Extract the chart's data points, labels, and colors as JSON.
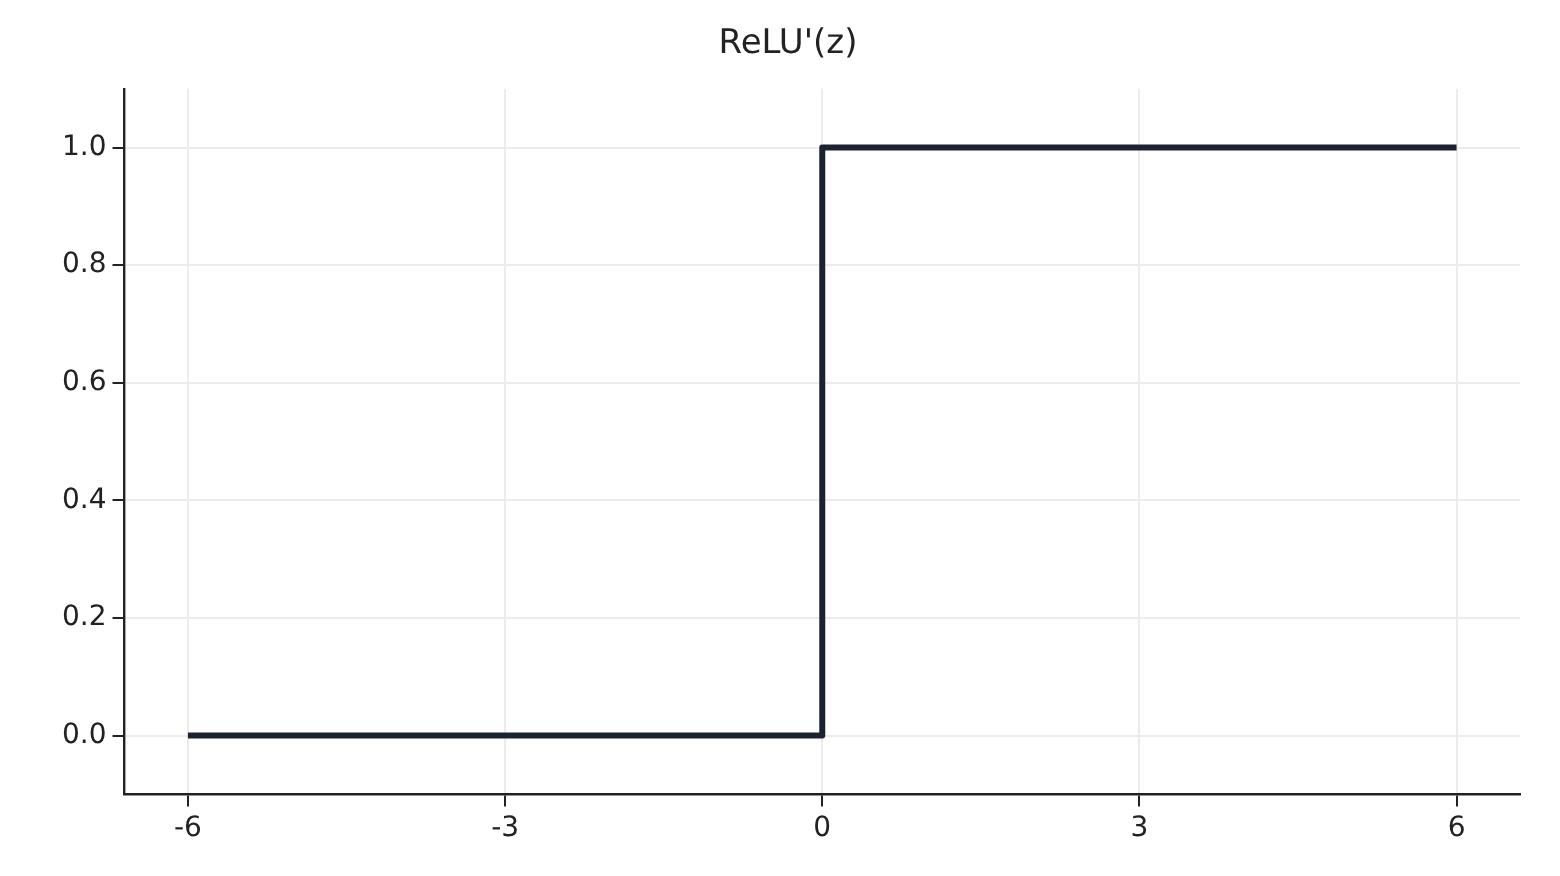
{
  "chart_data": {
    "type": "line",
    "title": "ReLU'(z)",
    "series": [
      {
        "color": "#1c2230",
        "x": [
          -6,
          0,
          0,
          6
        ],
        "values": [
          0,
          0,
          1,
          1
        ]
      }
    ],
    "xlim": [
      -6.6,
      6.6
    ],
    "xticks": [
      -6,
      -3,
      0,
      3,
      6
    ],
    "ylim": [
      -0.1,
      1.1
    ],
    "yticks": [
      {
        "value": 0,
        "label": "0.0"
      },
      {
        "value": 0.2,
        "label": "0.2"
      },
      {
        "value": 0.4,
        "label": "0.4"
      },
      {
        "value": 0.6,
        "label": "0.6"
      },
      {
        "value": 0.8,
        "label": "0.8"
      },
      {
        "value": 1,
        "label": "1.0"
      }
    ],
    "grid": true,
    "legend": false,
    "marker": "none",
    "line_style": "solid"
  }
}
